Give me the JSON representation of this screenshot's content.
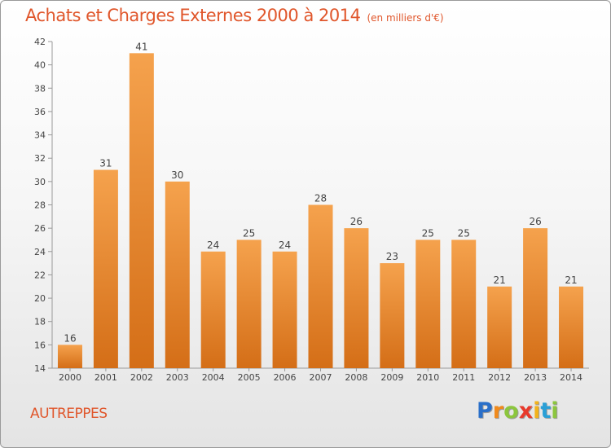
{
  "header": {
    "title": "Achats et Charges Externes 2000 à 2014",
    "subtitle": "(en milliers d'€)"
  },
  "footer": {
    "place": "AUTREPPES",
    "logo_letters": [
      "P",
      "r",
      "o",
      "x",
      "i",
      "t",
      "i"
    ],
    "logo_colors": [
      "#2a6fc9",
      "#f08a1c",
      "#8cc63e",
      "#e8392b",
      "#f2b21b",
      "#2a9fd6",
      "#8cc63e"
    ]
  },
  "chart_data": {
    "type": "bar",
    "title": "Achats et Charges Externes 2000 à 2014",
    "subtitle": "(en milliers d'€)",
    "categories": [
      "2000",
      "2001",
      "2002",
      "2003",
      "2004",
      "2005",
      "2006",
      "2007",
      "2008",
      "2009",
      "2010",
      "2011",
      "2012",
      "2013",
      "2014"
    ],
    "values": [
      16,
      31,
      41,
      30,
      24,
      25,
      24,
      28,
      26,
      23,
      25,
      25,
      21,
      26,
      21
    ],
    "ylim": [
      14,
      42
    ],
    "yticks": [
      14,
      16,
      18,
      20,
      22,
      24,
      26,
      28,
      30,
      32,
      34,
      36,
      38,
      40,
      42
    ],
    "grid": false,
    "colors": {
      "bar_top": "#f5a24d",
      "bar_bottom": "#d46e17",
      "axis": "#999999"
    }
  }
}
